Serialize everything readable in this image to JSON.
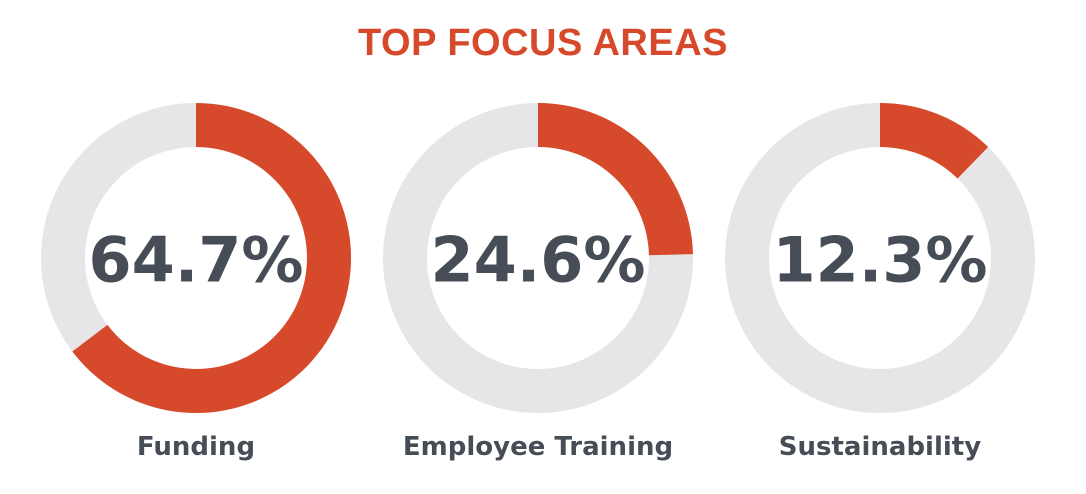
{
  "chart_data": {
    "type": "donut",
    "title": "TOP FOCUS AREAS",
    "items": [
      {
        "label": "Funding",
        "value": 64.7,
        "value_label": "64.7%"
      },
      {
        "label": "Employee Training",
        "value": 24.6,
        "value_label": "24.6%"
      },
      {
        "label": "Sustainability",
        "value": 12.3,
        "value_label": "12.3%"
      }
    ],
    "max": 100
  },
  "colors": {
    "accent": "#D64A2B",
    "track": "#E6E6E8",
    "text": "#474D57"
  }
}
